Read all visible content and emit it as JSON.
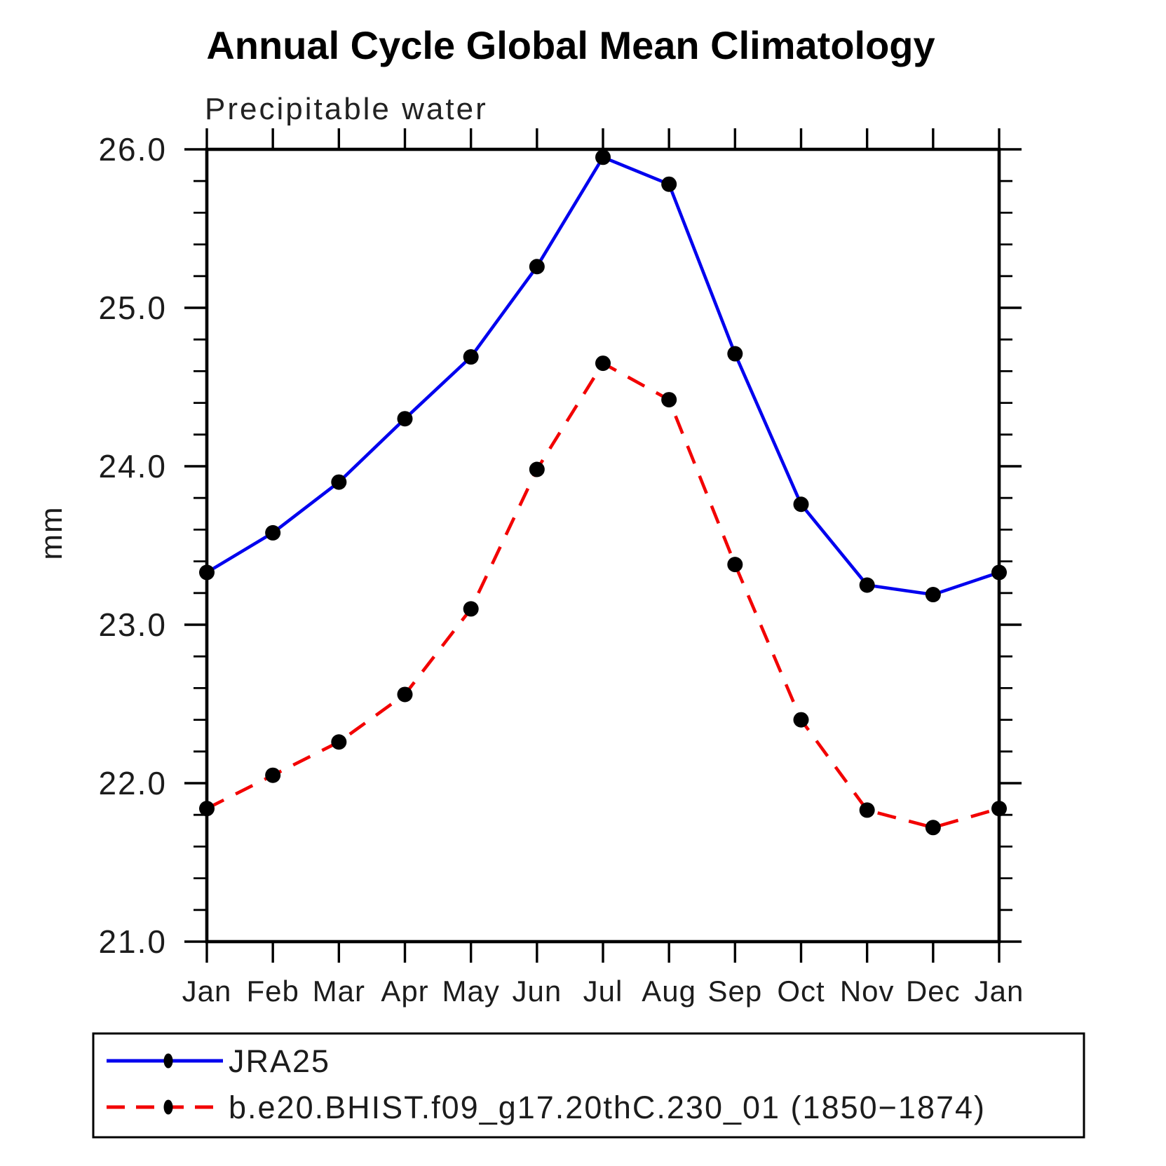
{
  "chart_data": {
    "type": "line",
    "title": "Annual Cycle Global Mean Climatology",
    "subtitle": "Precipitable water",
    "ylabel": "mm",
    "ylim": [
      21.0,
      26.0
    ],
    "ytick_labels": [
      "26.0",
      "25.0",
      "24.0",
      "23.0",
      "22.0",
      "21.0"
    ],
    "ytick_values": [
      26.0,
      25.0,
      24.0,
      23.0,
      22.0,
      21.0
    ],
    "ytick_minor_step": 0.2,
    "categories": [
      "Jan",
      "Feb",
      "Mar",
      "Apr",
      "May",
      "Jun",
      "Jul",
      "Aug",
      "Sep",
      "Oct",
      "Nov",
      "Dec",
      "Jan"
    ],
    "grid": false,
    "legend_position": "bottom-box",
    "axis_color": "#000000",
    "marker_color": "#000000",
    "series": [
      {
        "name": "JRA25",
        "color": "#0000ee",
        "line_style": "solid",
        "marker": "filled-circle",
        "values": [
          23.33,
          23.58,
          23.9,
          24.3,
          24.69,
          25.26,
          25.95,
          25.78,
          24.71,
          23.76,
          23.25,
          23.19,
          23.33
        ]
      },
      {
        "name": "b.e20.BHIST.f09_g17.20thC.230_01 (1850−1874)",
        "color": "#f20000",
        "line_style": "dashed",
        "marker": "filled-circle",
        "values": [
          21.84,
          22.05,
          22.26,
          22.56,
          23.1,
          23.98,
          24.65,
          24.42,
          23.38,
          22.4,
          21.83,
          21.72,
          21.84
        ]
      }
    ]
  }
}
